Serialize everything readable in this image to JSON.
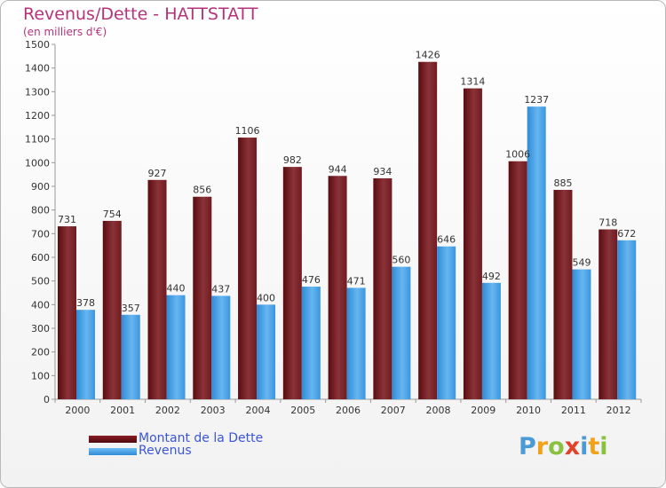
{
  "header": {
    "title": "Revenus/Dette - HATTSTATT",
    "subtitle": "(en milliers d'€)"
  },
  "legend": {
    "items": [
      {
        "label": "Montant de la Dette",
        "color": "#6e0f14"
      },
      {
        "label": "Revenus",
        "color": "#3f9be0"
      }
    ]
  },
  "logo": {
    "text": "Proxiti"
  },
  "chart_data": {
    "type": "bar",
    "categories": [
      "2000",
      "2001",
      "2002",
      "2003",
      "2004",
      "2005",
      "2006",
      "2007",
      "2008",
      "2009",
      "2010",
      "2011",
      "2012"
    ],
    "series": [
      {
        "name": "Montant de la Dette",
        "color": "#7a2328",
        "values": [
          731,
          754,
          927,
          856,
          1106,
          982,
          944,
          934,
          1426,
          1314,
          1006,
          885,
          718
        ]
      },
      {
        "name": "Revenus",
        "color": "#4aa3e6",
        "values": [
          378,
          357,
          440,
          437,
          400,
          476,
          471,
          560,
          646,
          492,
          1237,
          549,
          672
        ]
      }
    ],
    "data_labels": [
      [
        "731",
        "754",
        "927",
        "856",
        "1106",
        "982",
        "944",
        "934",
        "1426",
        "1314",
        "1006",
        "885",
        "718"
      ],
      [
        "378",
        "357",
        "440",
        "437",
        "400",
        "476",
        "471",
        "560",
        "646",
        "492",
        "1237",
        "549",
        "672"
      ]
    ],
    "ylim": [
      0,
      1500
    ],
    "ytick_step": 100,
    "yticks": [
      "0",
      "100",
      "200",
      "300",
      "400",
      "500",
      "600",
      "700",
      "800",
      "900",
      "1000",
      "1100",
      "1200",
      "1300",
      "1400",
      "1500"
    ],
    "grid": false,
    "legend_position": "bottom-left"
  }
}
